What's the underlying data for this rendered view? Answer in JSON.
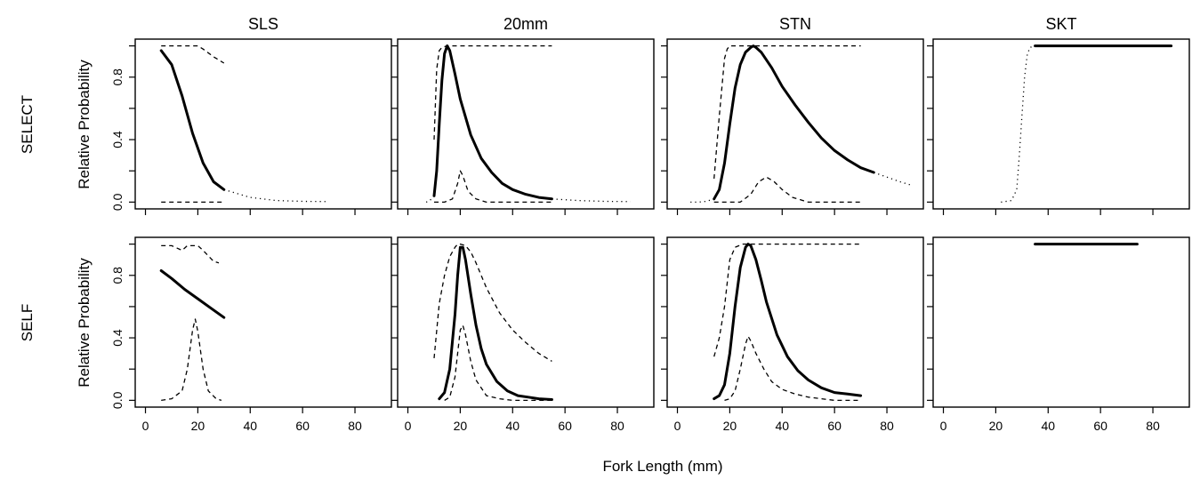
{
  "figure": {
    "column_titles": [
      "SLS",
      "20mm",
      "STN",
      "SKT"
    ],
    "row_titles": [
      "SELECT",
      "SELF"
    ],
    "ylabel": "Relative Probability",
    "xlabel": "Fork Length (mm)"
  },
  "chart_data": [
    {
      "type": "line",
      "panel": "SELECT / SLS",
      "row": "SELECT",
      "column": "SLS",
      "xlim": [
        0,
        90
      ],
      "ylim": [
        0,
        1
      ],
      "xticks": [
        0,
        20,
        40,
        60,
        80
      ],
      "yticks": [
        0.0,
        0.2,
        0.4,
        0.6,
        0.8,
        1.0
      ],
      "yticklabels": [
        "0.0",
        "",
        "0.4",
        "",
        "0.8",
        ""
      ],
      "series": [
        {
          "style": "solid",
          "x": [
            6,
            10,
            14,
            18,
            22,
            26,
            30
          ],
          "y": [
            0.97,
            0.88,
            0.68,
            0.44,
            0.25,
            0.13,
            0.08
          ]
        },
        {
          "style": "dotted",
          "x": [
            30,
            40,
            50,
            60,
            70
          ],
          "y": [
            0.08,
            0.03,
            0.01,
            0.005,
            0.003
          ]
        },
        {
          "style": "dashed",
          "x": [
            6,
            10,
            15,
            20,
            22,
            26,
            30
          ],
          "y": [
            1.0,
            1.0,
            1.0,
            1.0,
            0.98,
            0.93,
            0.89
          ]
        },
        {
          "style": "dashed",
          "x": [
            6,
            10,
            15,
            20,
            25,
            30
          ],
          "y": [
            0.0,
            0.0,
            0.0,
            0.0,
            0.0,
            0.0
          ]
        }
      ]
    },
    {
      "type": "line",
      "panel": "SELECT / 20mm",
      "row": "SELECT",
      "column": "20mm",
      "xlim": [
        0,
        90
      ],
      "ylim": [
        0,
        1
      ],
      "xticks": [
        0,
        20,
        40,
        60,
        80
      ],
      "yticks": [
        0.0,
        0.2,
        0.4,
        0.6,
        0.8,
        1.0
      ],
      "yticklabels": [
        "0.0",
        "",
        "0.4",
        "",
        "0.8",
        ""
      ],
      "series": [
        {
          "style": "solid",
          "x": [
            10,
            11,
            12,
            13,
            14,
            15,
            16,
            18,
            20,
            24,
            28,
            32,
            36,
            40,
            45,
            50,
            55
          ],
          "y": [
            0.04,
            0.2,
            0.5,
            0.78,
            0.95,
            1.0,
            0.97,
            0.82,
            0.66,
            0.43,
            0.28,
            0.19,
            0.12,
            0.08,
            0.05,
            0.03,
            0.02
          ]
        },
        {
          "style": "dotted",
          "x": [
            55,
            65,
            75,
            85
          ],
          "y": [
            0.02,
            0.01,
            0.005,
            0.003
          ]
        },
        {
          "style": "dotted",
          "x": [
            7,
            8,
            9,
            10
          ],
          "y": [
            0.0,
            0.005,
            0.02,
            0.04
          ]
        },
        {
          "style": "dashed",
          "x": [
            10,
            11,
            12,
            13,
            15,
            20,
            30,
            40,
            55
          ],
          "y": [
            0.4,
            0.85,
            0.97,
            0.99,
            1.0,
            1.0,
            1.0,
            1.0,
            1.0
          ]
        },
        {
          "style": "dashed",
          "x": [
            10,
            14,
            17,
            19,
            20,
            21,
            23,
            26,
            30,
            40,
            55
          ],
          "y": [
            0.0,
            0.0,
            0.02,
            0.12,
            0.2,
            0.17,
            0.07,
            0.02,
            0.0,
            0.0,
            0.0
          ]
        }
      ]
    },
    {
      "type": "line",
      "panel": "SELECT / STN",
      "row": "SELECT",
      "column": "STN",
      "xlim": [
        0,
        90
      ],
      "ylim": [
        0,
        1
      ],
      "xticks": [
        0,
        20,
        40,
        60,
        80
      ],
      "yticks": [
        0.0,
        0.2,
        0.4,
        0.6,
        0.8,
        1.0
      ],
      "yticklabels": [
        "0.0",
        "",
        "0.4",
        "",
        "0.8",
        ""
      ],
      "series": [
        {
          "style": "solid",
          "x": [
            14,
            16,
            18,
            20,
            22,
            24,
            26,
            28,
            29,
            30,
            32,
            36,
            40,
            45,
            50,
            55,
            60,
            65,
            70,
            75
          ],
          "y": [
            0.02,
            0.08,
            0.25,
            0.5,
            0.73,
            0.88,
            0.96,
            0.99,
            1.0,
            0.99,
            0.96,
            0.86,
            0.74,
            0.62,
            0.51,
            0.41,
            0.33,
            0.27,
            0.22,
            0.19
          ]
        },
        {
          "style": "dotted",
          "x": [
            75,
            80,
            85,
            89
          ],
          "y": [
            0.19,
            0.16,
            0.13,
            0.11
          ]
        },
        {
          "style": "dotted",
          "x": [
            5,
            8,
            11,
            14
          ],
          "y": [
            0.0,
            0.0,
            0.005,
            0.02
          ]
        },
        {
          "style": "dashed",
          "x": [
            14,
            16,
            18,
            19,
            20,
            25,
            40,
            70
          ],
          "y": [
            0.15,
            0.55,
            0.92,
            0.98,
            1.0,
            1.0,
            1.0,
            1.0
          ]
        },
        {
          "style": "dashed",
          "x": [
            14,
            24,
            28,
            31,
            34,
            37,
            40,
            44,
            50,
            70
          ],
          "y": [
            0.0,
            0.0,
            0.05,
            0.13,
            0.16,
            0.13,
            0.08,
            0.03,
            0.0,
            0.0
          ]
        }
      ]
    },
    {
      "type": "line",
      "panel": "SELECT / SKT",
      "row": "SELECT",
      "column": "SKT",
      "xlim": [
        0,
        90
      ],
      "ylim": [
        0,
        1
      ],
      "xticks": [
        0,
        20,
        40,
        60,
        80
      ],
      "yticks": [
        0.0,
        0.2,
        0.4,
        0.6,
        0.8,
        1.0
      ],
      "yticklabels": [
        "0.0",
        "",
        "0.4",
        "",
        "0.8",
        ""
      ],
      "series": [
        {
          "style": "solid",
          "x": [
            35,
            87
          ],
          "y": [
            1.0,
            1.0
          ]
        },
        {
          "style": "dotted",
          "x": [
            22,
            26,
            28,
            29,
            30,
            31,
            32,
            33,
            35
          ],
          "y": [
            0.0,
            0.01,
            0.08,
            0.3,
            0.55,
            0.8,
            0.94,
            0.99,
            1.0
          ]
        }
      ]
    },
    {
      "type": "line",
      "panel": "SELF / SLS",
      "row": "SELF",
      "column": "SLS",
      "xlim": [
        0,
        90
      ],
      "ylim": [
        0,
        1
      ],
      "xticks": [
        0,
        20,
        40,
        60,
        80
      ],
      "yticks": [
        0.0,
        0.2,
        0.4,
        0.6,
        0.8,
        1.0
      ],
      "yticklabels": [
        "0.0",
        "",
        "0.4",
        "",
        "0.8",
        ""
      ],
      "series": [
        {
          "style": "solid",
          "x": [
            6,
            10,
            15,
            20,
            25,
            30
          ],
          "y": [
            0.83,
            0.78,
            0.71,
            0.65,
            0.59,
            0.53
          ]
        },
        {
          "style": "dashed",
          "x": [
            6,
            10,
            14,
            16,
            20,
            22,
            26,
            28
          ],
          "y": [
            0.99,
            0.99,
            0.96,
            0.99,
            0.99,
            0.96,
            0.89,
            0.88
          ]
        },
        {
          "style": "dashed",
          "x": [
            6,
            10,
            14,
            16,
            18,
            19,
            20,
            22,
            24,
            27,
            29
          ],
          "y": [
            0.0,
            0.01,
            0.06,
            0.2,
            0.45,
            0.52,
            0.44,
            0.2,
            0.06,
            0.01,
            0.0
          ]
        }
      ]
    },
    {
      "type": "line",
      "panel": "SELF / 20mm",
      "row": "SELF",
      "column": "20mm",
      "xlim": [
        0,
        90
      ],
      "ylim": [
        0,
        1
      ],
      "xticks": [
        0,
        20,
        40,
        60,
        80
      ],
      "yticks": [
        0.0,
        0.2,
        0.4,
        0.6,
        0.8,
        1.0
      ],
      "yticklabels": [
        "0.0",
        "",
        "0.4",
        "",
        "0.8",
        ""
      ],
      "series": [
        {
          "style": "solid",
          "x": [
            12,
            14,
            16,
            18,
            19,
            20,
            21,
            22,
            24,
            26,
            28,
            30,
            34,
            38,
            42,
            46,
            50,
            55
          ],
          "y": [
            0.01,
            0.05,
            0.2,
            0.55,
            0.8,
            0.98,
            0.98,
            0.9,
            0.68,
            0.48,
            0.33,
            0.23,
            0.12,
            0.06,
            0.03,
            0.02,
            0.01,
            0.005
          ]
        },
        {
          "style": "dashed",
          "x": [
            10,
            12,
            14,
            16,
            18,
            19,
            20,
            22,
            24,
            26,
            30,
            35,
            40,
            45,
            50,
            55
          ],
          "y": [
            0.27,
            0.62,
            0.8,
            0.92,
            0.98,
            1.0,
            1.0,
            0.99,
            0.95,
            0.88,
            0.72,
            0.56,
            0.45,
            0.37,
            0.3,
            0.25
          ]
        },
        {
          "style": "dashed",
          "x": [
            14,
            16,
            18,
            20,
            21,
            22,
            24,
            26,
            30,
            35,
            40,
            45,
            55
          ],
          "y": [
            0.0,
            0.02,
            0.15,
            0.45,
            0.48,
            0.42,
            0.25,
            0.13,
            0.03,
            0.01,
            0.0,
            0.0,
            0.0
          ]
        }
      ]
    },
    {
      "type": "line",
      "panel": "SELF / STN",
      "row": "SELF",
      "column": "STN",
      "xlim": [
        0,
        90
      ],
      "ylim": [
        0,
        1
      ],
      "xticks": [
        0,
        20,
        40,
        60,
        80
      ],
      "yticks": [
        0.0,
        0.2,
        0.4,
        0.6,
        0.8,
        1.0
      ],
      "yticklabels": [
        "0.0",
        "",
        "0.4",
        "",
        "0.8",
        ""
      ],
      "series": [
        {
          "style": "solid",
          "x": [
            14,
            16,
            18,
            20,
            22,
            24,
            26,
            27,
            28,
            30,
            32,
            34,
            38,
            42,
            46,
            50,
            55,
            60,
            65,
            70
          ],
          "y": [
            0.01,
            0.03,
            0.1,
            0.3,
            0.6,
            0.85,
            0.98,
            1.0,
            0.99,
            0.9,
            0.77,
            0.63,
            0.42,
            0.28,
            0.19,
            0.13,
            0.08,
            0.05,
            0.04,
            0.03
          ]
        },
        {
          "style": "dashed",
          "x": [
            14,
            16,
            18,
            20,
            22,
            25,
            30,
            40,
            70
          ],
          "y": [
            0.28,
            0.4,
            0.6,
            0.9,
            0.98,
            1.0,
            1.0,
            1.0,
            1.0
          ]
        },
        {
          "style": "dashed",
          "x": [
            18,
            20,
            22,
            24,
            26,
            27,
            28,
            30,
            33,
            36,
            40,
            45,
            50,
            55,
            60,
            70
          ],
          "y": [
            0.0,
            0.01,
            0.06,
            0.2,
            0.36,
            0.41,
            0.38,
            0.3,
            0.2,
            0.12,
            0.07,
            0.04,
            0.02,
            0.01,
            0.0,
            0.0
          ]
        }
      ]
    },
    {
      "type": "line",
      "panel": "SELF / SKT",
      "row": "SELF",
      "column": "SKT",
      "xlim": [
        0,
        90
      ],
      "ylim": [
        0,
        1
      ],
      "xticks": [
        0,
        20,
        40,
        60,
        80
      ],
      "yticks": [
        0.0,
        0.2,
        0.4,
        0.6,
        0.8,
        1.0
      ],
      "yticklabels": [
        "0.0",
        "",
        "0.4",
        "",
        "0.8",
        ""
      ],
      "series": [
        {
          "style": "solid",
          "x": [
            35,
            74
          ],
          "y": [
            1.0,
            1.0
          ]
        }
      ]
    }
  ]
}
